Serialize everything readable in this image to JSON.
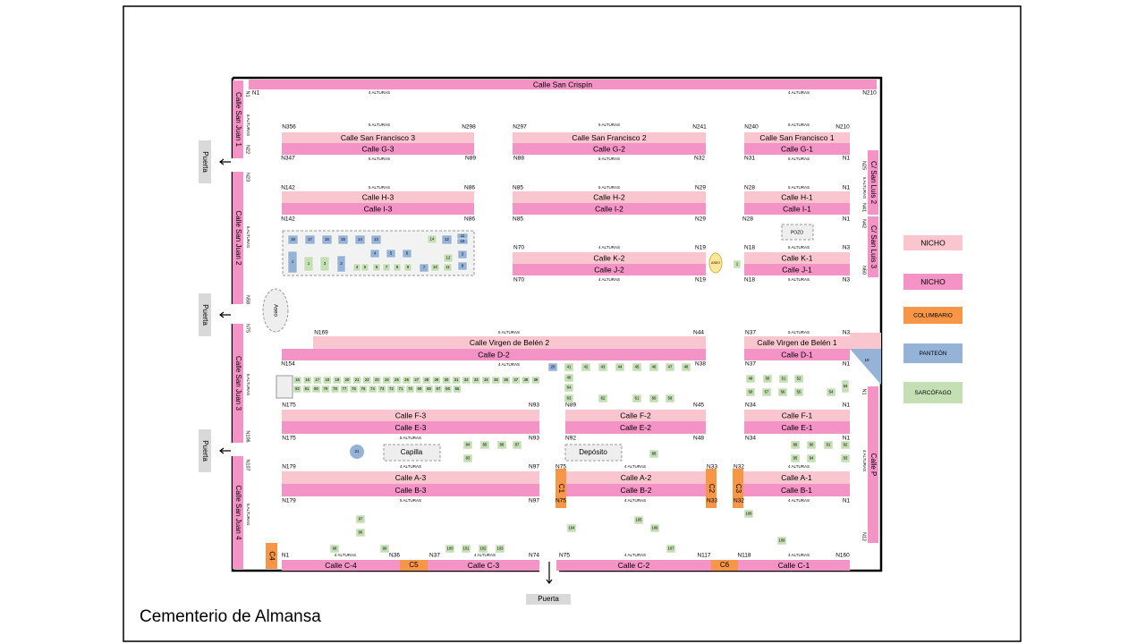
{
  "title": "Cementerio de Almansa",
  "legend": [
    {
      "label": "NICHO",
      "color": "#f9c6cf"
    },
    {
      "label": "NICHO",
      "color": "#f393c6"
    },
    {
      "label": "COLUMBARIO",
      "color": "#f79646"
    },
    {
      "label": "PANTEÓN",
      "color": "#95b3d7"
    },
    {
      "label": "SARCÓFAGO",
      "color": "#c4dfb4"
    }
  ],
  "streets": [
    "Calle San Crispín",
    "Calle San Francisco 3",
    "Calle G-3",
    "Calle San Francisco 2",
    "Calle G-2",
    "Calle San Francisco 1",
    "Calle G-1",
    "Calle H-3",
    "Calle I-3",
    "Calle H-2",
    "Calle I-2",
    "Calle H-1",
    "Calle I-1",
    "Calle K-2",
    "Calle J-2",
    "Calle K-1",
    "Calle J-1",
    "Calle Virgen de Belén 2",
    "Calle D-2",
    "Calle Virgen de Belén 1",
    "Calle D-1",
    "Calle F-3",
    "Calle E-3",
    "Calle F-2",
    "Calle E-2",
    "Calle F-1",
    "Calle E-1",
    "Calle A-3",
    "Calle B-3",
    "Calle A-2",
    "Calle B-2",
    "Calle A-1",
    "Calle B-1",
    "Calle C-4",
    "Calle C-3",
    "Calle C-2",
    "Calle C-1"
  ],
  "vertical_streets": [
    "Calle San Juan 1",
    "Calle San Juan 2",
    "Calle San Juan 3",
    "Calle San Juan 4",
    "C/ San Luis 2",
    "C/ San Luis 3",
    "Calle P"
  ],
  "gates": [
    "Puerta",
    "Puerta",
    "Puerta",
    "Puerta"
  ],
  "columbaria": [
    "C1",
    "C2",
    "C3",
    "C4",
    "C5",
    "C6"
  ],
  "buildings": [
    "Capilla",
    "Depósito",
    "POZO",
    "Aseo",
    "ASEO"
  ],
  "niche_labels": [
    "N1",
    "N210",
    "N356",
    "N298",
    "N297",
    "N241",
    "N240",
    "N210",
    "N347",
    "N89",
    "N88",
    "N32",
    "N31",
    "N1",
    "N142",
    "N86",
    "N85",
    "N29",
    "N28",
    "N1",
    "N142",
    "N86",
    "N85",
    "N29",
    "N28",
    "N1",
    "N70",
    "N19",
    "N18",
    "N3",
    "N70",
    "N19",
    "N18",
    "N3",
    "N169",
    "N44",
    "N37",
    "N3",
    "N154",
    "N38",
    "N37",
    "N1",
    "N175",
    "N93",
    "N89",
    "N45",
    "N34",
    "N1",
    "N175",
    "N93",
    "N92",
    "N48",
    "N34",
    "N1",
    "N179",
    "N97",
    "N75",
    "N33",
    "N32",
    "N179",
    "N97",
    "N75",
    "N33",
    "N32",
    "N1",
    "N1",
    "N36",
    "N37",
    "N74",
    "N75",
    "N117",
    "N118",
    "N160"
  ],
  "niche_labels_vertical": [
    "N1",
    "N22",
    "N23",
    "N58",
    "N75",
    "N106",
    "N107",
    "N25",
    "N41",
    "N42",
    "N60",
    "N1",
    "N12"
  ],
  "heights": [
    "4 ALTURAS",
    "4 ALTURAS",
    "5 ALTURAS",
    "5 ALTURAS",
    "5 ALTURAS",
    "5 ALTURAS",
    "5 ALTURAS",
    "5 ALTURAS",
    "5 ALTURAS",
    "5 ALTURAS",
    "5 ALTURAS",
    "4 ALTURAS",
    "4 ALTURAS",
    "5 ALTURAS",
    "5 ALTURAS",
    "5 ALTURAS",
    "5 ALTURAS",
    "4 ALTURAS",
    "5 ALTURAS",
    "4 ALTURAS",
    "5 ALTURAS",
    "4 ALTURAS",
    "4 ALTURAS",
    "4 ALTURAS",
    "4 ALTURAS",
    "4 ALTURAS",
    "4 ALTURAS",
    "4 ALTURAS",
    "4 ALTURAS"
  ],
  "heights_vertical": [
    "5 ALTURAS",
    "5 ALTURAS",
    "5 ALTURAS",
    "5 ALTURAS",
    "5 ALTURAS",
    "4 ALTURAS"
  ],
  "panteones": [
    "18",
    "17",
    "16",
    "15",
    "14",
    "13",
    "12",
    "11",
    "10",
    "1",
    "2",
    "3",
    "4",
    "5",
    "6",
    "7",
    "8",
    "20",
    "21",
    "19"
  ],
  "sarcofagos_row1": [
    "15",
    "16",
    "17",
    "18",
    "19",
    "20",
    "21",
    "22",
    "23",
    "24",
    "25",
    "26",
    "27",
    "28",
    "29",
    "30",
    "31",
    "32",
    "33",
    "34",
    "35",
    "36",
    "37",
    "38",
    "39"
  ],
  "sarcofagos_row2": [
    "82",
    "81",
    "80",
    "79",
    "78",
    "77",
    "76",
    "75",
    "74",
    "73",
    "72",
    "71",
    "70",
    "69",
    "68",
    "67",
    "66",
    "65"
  ],
  "sarcofagos": [
    "41",
    "42",
    "43",
    "44",
    "45",
    "46",
    "47",
    "48",
    "40",
    "64",
    "63",
    "62",
    "61",
    "60",
    "59",
    "49",
    "50",
    "51",
    "52",
    "58",
    "57",
    "56",
    "55",
    "54",
    "53",
    "84",
    "85",
    "86",
    "87",
    "83",
    "88",
    "89",
    "90",
    "91",
    "92",
    "95",
    "94",
    "93",
    "97",
    "96",
    "98",
    "99",
    "100",
    "101",
    "102",
    "103",
    "104",
    "105",
    "106",
    "107",
    "108",
    "109",
    "1",
    "14",
    "12",
    "1",
    "3",
    "4",
    "5",
    "6",
    "7",
    "8",
    "9",
    "10",
    "11"
  ]
}
